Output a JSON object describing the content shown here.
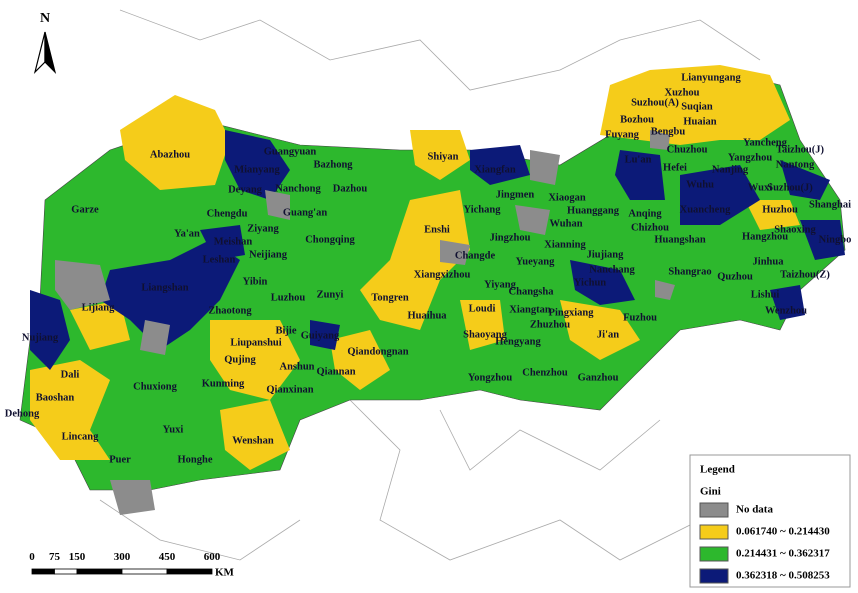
{
  "north": "N",
  "cities": [
    "Lianyungang",
    "Xuzhou",
    "Suzhou(A)",
    "Suqian",
    "Bozhou",
    "Huaian",
    "Yancheng",
    "Bengbu",
    "Fuyang",
    "Chuzhou",
    "Yangzhou",
    "Taizhou(J)",
    "Nantong",
    "Shiyan",
    "Xiangfan",
    "Lu'an",
    "Hefei",
    "Nanjing",
    "Wuhu",
    "Wuxi",
    "Suzhou(J)",
    "Shanghai",
    "Jingmen",
    "Xiaogan",
    "Huanggang",
    "Anqing",
    "Xuancheng",
    "Huzhou",
    "Wuhan",
    "Chizhou",
    "Huangshan",
    "Hangzhou",
    "Shaoxing",
    "Ningbo",
    "Abazhou",
    "Guangyuan",
    "Bazhong",
    "Mianyang",
    "Nanchong",
    "Dazhou",
    "Deyang",
    "Chengdu",
    "Guang'an",
    "Ziyang",
    "Meishan",
    "Ya'an",
    "Neijiang",
    "Leshan",
    "Chongqing",
    "Garze",
    "Enshi",
    "Yichang",
    "Jingzhou",
    "Xianning",
    "Jiujiang",
    "Changde",
    "Yueyang",
    "Nanchang",
    "Shangrao",
    "Jinhua",
    "Taizhou(Z)",
    "Quzhou",
    "Lishui",
    "Wenzhou",
    "Yichun",
    "Pingxiang",
    "Fuzhou",
    "Ji'an",
    "Changsha",
    "Yiyang",
    "Xiangtan",
    "Zhuzhou",
    "Loudi",
    "Hengyang",
    "Shaoyang",
    "Huaihua",
    "Xiangxizhou",
    "Tongren",
    "Zunyi",
    "Luzhou",
    "Yibin",
    "Zhaotong",
    "Liangshan",
    "Nujiang",
    "Lijiang",
    "Bijie",
    "Guiyang",
    "Liupanshui",
    "Qujing",
    "Qiandongnan",
    "Anshun",
    "Qiannan",
    "Qianxinan",
    "Kunming",
    "Chuxiong",
    "Dali",
    "Baoshan",
    "Dehong",
    "Lincang",
    "Yuxi",
    "Honghe",
    "Puer",
    "Wenshan",
    "Yongzhou",
    "Chenzhou",
    "Ganzhou"
  ],
  "legend": {
    "title": "Legend",
    "subtitle": "Gini",
    "items": [
      {
        "label": "No data",
        "color": "#8c8c8c"
      },
      {
        "label": "0.061740 ~ 0.214430",
        "color": "#f5cc1a"
      },
      {
        "label": "0.214431 ~ 0.362317",
        "color": "#2db82d"
      },
      {
        "label": "0.362318 ~ 0.508253",
        "color": "#0c1a78"
      }
    ]
  },
  "scale": {
    "ticks": [
      0,
      75,
      150,
      300,
      450,
      600
    ],
    "unit": "KM"
  }
}
